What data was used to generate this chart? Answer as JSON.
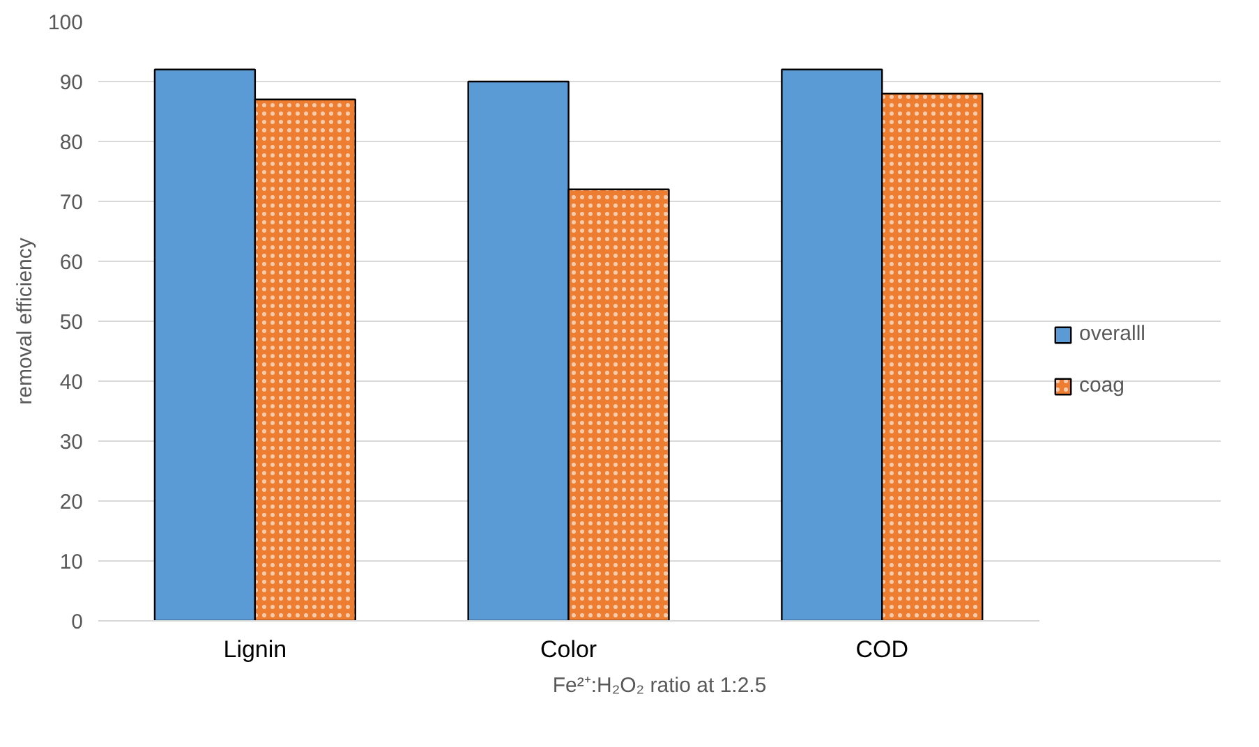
{
  "chart_data": {
    "type": "bar",
    "xlabel": "Fe²⁺:H₂O₂ ratio at 1:2.5",
    "ylabel": "removal efficiency",
    "categories": [
      "Lignin",
      "Color",
      "COD"
    ],
    "series": [
      {
        "name": "overalll",
        "color": "#5b9bd5",
        "values": [
          92,
          90,
          92
        ]
      },
      {
        "name": "coag",
        "color": "#ed7d31",
        "values": [
          87,
          72,
          88
        ]
      }
    ],
    "ylim": [
      0,
      100
    ],
    "yticks": [
      0,
      10,
      20,
      30,
      40,
      50,
      60,
      70,
      80,
      90,
      100
    ],
    "grid": "y",
    "legend": "right"
  }
}
